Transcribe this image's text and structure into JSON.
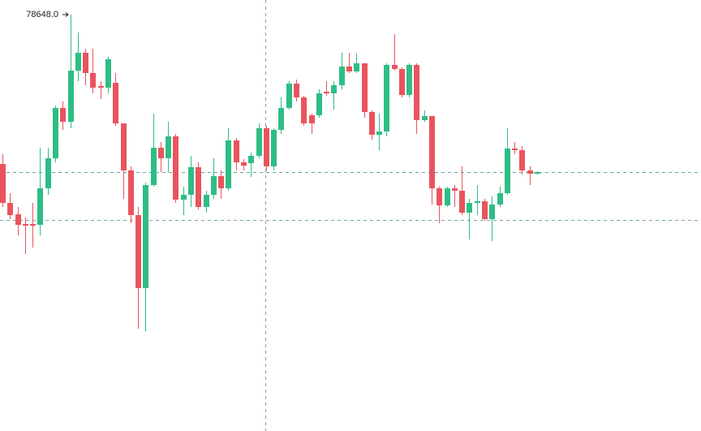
{
  "chart_data": {
    "type": "candlestick",
    "up_color": "#2ebd85",
    "down_color": "#e9545e",
    "ylim": [
      76596,
      78720
    ],
    "high_label": {
      "value": 78648,
      "label": "78648.0"
    },
    "price_lines": [
      77872,
      77636
    ],
    "open": [
      77912,
      77720,
      77664,
      77616,
      77616,
      77612,
      77792,
      77940,
      78188,
      78120,
      78372,
      78460,
      78360,
      78296,
      78288,
      78312,
      78112,
      77880,
      77660,
      77300,
      77808,
      77992,
      77940,
      78048,
      77736,
      77760,
      77896,
      77700,
      77760,
      77852,
      77792,
      78028,
      77920,
      77916,
      77952,
      78088,
      77900,
      78080,
      78188,
      78308,
      78240,
      78152,
      78152,
      78268,
      78260,
      78300,
      78392,
      78368,
      78408,
      78168,
      78056,
      78072,
      78400,
      78380,
      78252,
      78400,
      78128,
      78148,
      77792,
      77708,
      77792,
      77780,
      77672,
      77720,
      77728,
      77640,
      77712,
      77768,
      77988,
      77980,
      77880,
      77864
    ],
    "high": [
      77960,
      77768,
      77700,
      77648,
      77720,
      77992,
      77992,
      78200,
      78220,
      78648,
      78560,
      78480,
      78480,
      78320,
      78440,
      78360,
      78112,
      77900,
      77700,
      77820,
      78160,
      78020,
      78120,
      78060,
      77800,
      77952,
      77920,
      77780,
      77940,
      77880,
      78088,
      78040,
      77936,
      77968,
      78112,
      78100,
      78088,
      78240,
      78320,
      78328,
      78248,
      78160,
      78280,
      78320,
      78320,
      78460,
      78460,
      78456,
      78408,
      78176,
      78160,
      78408,
      78552,
      78388,
      78408,
      78408,
      78176,
      78148,
      77800,
      77800,
      77808,
      77900,
      77740,
      77808,
      77740,
      77752,
      77800,
      78088,
      78020,
      78000,
      77900,
      77876
    ],
    "low": [
      77700,
      77640,
      77560,
      77468,
      77500,
      77560,
      77760,
      77920,
      78080,
      78088,
      78320,
      78300,
      78260,
      78232,
      78260,
      78100,
      77740,
      77620,
      77100,
      77088,
      77800,
      77872,
      77872,
      77720,
      77660,
      77700,
      77688,
      77672,
      77740,
      77740,
      77780,
      77880,
      77880,
      77848,
      77940,
      77880,
      77880,
      78060,
      78180,
      78220,
      78100,
      78060,
      78140,
      78248,
      78180,
      78280,
      78360,
      78360,
      78140,
      78032,
      77980,
      78048,
      78372,
      78240,
      78240,
      78060,
      78120,
      77712,
      77620,
      77700,
      77700,
      77660,
      77540,
      77660,
      77632,
      77532,
      77700,
      77760,
      77960,
      77860,
      77808,
      77860
    ],
    "close": [
      77720,
      77660,
      77612,
      77608,
      77608,
      77792,
      77940,
      78188,
      78120,
      78372,
      78460,
      78360,
      78288,
      78288,
      78428,
      78112,
      77880,
      77660,
      77300,
      77808,
      77992,
      77940,
      78048,
      77736,
      77760,
      77896,
      77700,
      77760,
      77852,
      77792,
      78028,
      77920,
      77904,
      77952,
      78088,
      77900,
      78080,
      78188,
      78308,
      78240,
      78112,
      78112,
      78260,
      78260,
      78300,
      78392,
      78368,
      78408,
      78168,
      78056,
      78072,
      78400,
      78380,
      78252,
      78400,
      78128,
      78148,
      77792,
      77708,
      77792,
      77780,
      77672,
      77720,
      77728,
      77640,
      77712,
      77768,
      77988,
      77980,
      77880,
      77864,
      77872
    ]
  }
}
